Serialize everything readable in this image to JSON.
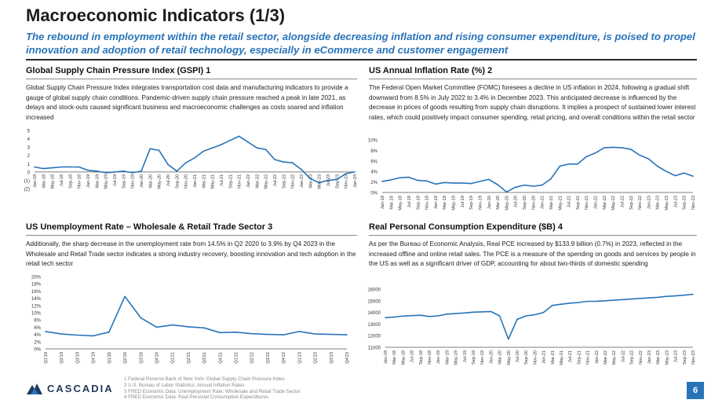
{
  "header": {
    "title": "Macroeconomic Indicators (1/3)",
    "subtitle": "The rebound in employment within the retail sector, alongside decreasing inflation and rising consumer expenditure, is poised to propel innovation and adoption of retail technology, especially in eCommerce and customer engagement"
  },
  "colors": {
    "accent": "#2874b8",
    "dark": "#1f3a5c"
  },
  "sections": {
    "gscpi": {
      "title": "Global Supply Chain Pressure Index (GSPI) 1",
      "description": "Global Supply Chain Pressure Index integrates transportation cost data and manufacturing indicators to provide a gauge of global supply chain conditions. Pandemic-driven supply chain pressure reached a peak in late 2021, as delays and stock-outs caused significant business and macroeconomic challenges as costs soared and inflation increased"
    },
    "inflation": {
      "title": "US Annual Inflation Rate (%) 2",
      "description": "The Federal Open Market Committee (FOMC) foresees a decline in US inflation in 2024, following a gradual shift downward from 8.5% in July 2022 to 3.4% in December 2023. This anticipated decrease is influenced by the decrease in prices of goods resulting from supply chain disruptions. It implies a prospect of sustained lower interest rates, which could positively impact consumer spending, retail pricing, and overall conditions within the retail sector"
    },
    "unemployment": {
      "title": "US Unemployment Rate – Wholesale & Retail Trade Sector 3",
      "description": "Additionally, the sharp decrease in the unemployment rate from 14.5% in Q2 2020 to 3.9% by Q4 2023 in the Wholesale and Retail Trade sector indicates a strong industry recovery, boosting innovation and tech adoption in the retail tech sector"
    },
    "pce": {
      "title": "Real Personal Consumption Expenditure ($B) 4",
      "description": "As per the Bureau of Economic Analysis, Real PCE increased by $133.9 billion (0.7%) in 2023, reflected in the increased offline and online retail sales. The PCE is a measure of the spending on goods and services by people in the US as well as a significant driver of GDP, accounting for about two-thirds of domestic spending"
    }
  },
  "chart_data": [
    {
      "id": "gscpi",
      "type": "line",
      "title": "Global Supply Chain Pressure Index (GSPI)",
      "ylim": [
        -2,
        5
      ],
      "yticks": [
        5,
        4,
        3,
        2,
        1,
        0,
        -1,
        -2
      ],
      "ytick_labels": [
        "5",
        "4",
        "3",
        "2",
        "1",
        "0",
        "(1)",
        "(2)"
      ],
      "categories": [
        "Jan-18",
        "Mar-18",
        "May-18",
        "Jul-18",
        "Sep-18",
        "Nov-18",
        "Jan-19",
        "Mar-19",
        "May-19",
        "Jul-19",
        "Sep-19",
        "Nov-19",
        "Jan-20",
        "Mar-20",
        "May-20",
        "Jul-20",
        "Sep-20",
        "Nov-20",
        "Jan-21",
        "Mar-21",
        "May-21",
        "Jul-21",
        "Sep-21",
        "Nov-21",
        "Jan-22",
        "Mar-22",
        "May-22",
        "Jul-22",
        "Sep-22",
        "Nov-22",
        "Jan-23",
        "Mar-23",
        "May-23",
        "Jul-23",
        "Sep-23",
        "Nov-23",
        "Jan-24"
      ],
      "values": [
        0.6,
        0.4,
        0.5,
        0.6,
        0.6,
        0.6,
        0.2,
        0.1,
        -0.1,
        0.0,
        0.1,
        -0.1,
        0.1,
        2.8,
        2.6,
        0.9,
        0.1,
        1.1,
        1.7,
        2.5,
        2.9,
        3.3,
        3.8,
        4.3,
        3.6,
        2.9,
        2.7,
        1.5,
        1.2,
        1.1,
        0.3,
        -0.8,
        -1.3,
        -1.0,
        -0.9,
        -0.2,
        0.0
      ]
    },
    {
      "id": "inflation",
      "type": "line",
      "title": "US Annual Inflation Rate (%)",
      "ylim": [
        0,
        10
      ],
      "yticks": [
        10,
        8,
        6,
        4,
        2,
        0
      ],
      "ytick_labels": [
        "10%",
        "8%",
        "6%",
        "4%",
        "2%",
        "0%"
      ],
      "categories": [
        "Jan-18",
        "Mar-18",
        "May-18",
        "Jul-18",
        "Sep-18",
        "Nov-18",
        "Jan-19",
        "Mar-19",
        "May-19",
        "Jul-19",
        "Sep-19",
        "Nov-19",
        "Jan-20",
        "Mar-20",
        "May-20",
        "Jul-20",
        "Sep-20",
        "Nov-20",
        "Jan-21",
        "Mar-21",
        "May-21",
        "Jul-21",
        "Sep-21",
        "Nov-21",
        "Jan-22",
        "Mar-22",
        "May-22",
        "Jul-22",
        "Sep-22",
        "Nov-22",
        "Jan-23",
        "Mar-23",
        "May-23",
        "Jul-23",
        "Sep-23",
        "Nov-23"
      ],
      "values": [
        2.1,
        2.4,
        2.8,
        2.9,
        2.3,
        2.2,
        1.6,
        1.9,
        1.8,
        1.8,
        1.7,
        2.1,
        2.5,
        1.5,
        0.1,
        1.0,
        1.4,
        1.2,
        1.4,
        2.6,
        5.0,
        5.4,
        5.4,
        6.8,
        7.5,
        8.5,
        8.6,
        8.5,
        8.2,
        7.1,
        6.4,
        5.0,
        4.0,
        3.2,
        3.7,
        3.1
      ]
    },
    {
      "id": "unemployment",
      "type": "line",
      "title": "US Unemployment Rate – Wholesale & Retail Trade Sector",
      "ylim": [
        0,
        20
      ],
      "yticks": [
        20,
        18,
        16,
        14,
        12,
        10,
        8,
        6,
        4,
        2,
        0
      ],
      "ytick_labels": [
        "20%",
        "18%",
        "16%",
        "14%",
        "12%",
        "10%",
        "8%",
        "6%",
        "4%",
        "2%",
        "0%"
      ],
      "categories": [
        "Q1'19",
        "Q2'19",
        "Q3'19",
        "Q4'19",
        "Q1'20",
        "Q2'20",
        "Q3'20",
        "Q4'20",
        "Q1'21",
        "Q2'21",
        "Q3'21",
        "Q4'21",
        "Q1'22",
        "Q2'22",
        "Q3'22",
        "Q4'22",
        "Q1'23",
        "Q2'23",
        "Q3'23",
        "Q4'23"
      ],
      "values": [
        4.8,
        4.1,
        3.8,
        3.6,
        4.6,
        14.5,
        8.6,
        6.0,
        6.6,
        6.1,
        5.8,
        4.5,
        4.6,
        4.2,
        4.0,
        3.9,
        4.8,
        4.1,
        4.0,
        3.9
      ]
    },
    {
      "id": "pce",
      "type": "line",
      "title": "Real Personal Consumption Expenditure ($B)",
      "ylim": [
        11000,
        16000
      ],
      "yticks": [
        16000,
        15000,
        14000,
        13000,
        12000,
        11000
      ],
      "ytick_labels": [
        "16000",
        "15000",
        "14000",
        "13000",
        "12000",
        "11000"
      ],
      "categories": [
        "Jan-18",
        "Mar-18",
        "May-18",
        "Jul-18",
        "Sep-18",
        "Nov-18",
        "Jan-19",
        "Mar-19",
        "May-19",
        "Jul-19",
        "Sep-19",
        "Nov-19",
        "Jan-20",
        "Mar-20",
        "May-20",
        "Jul-20",
        "Sep-20",
        "Nov-20",
        "Jan-21",
        "Mar-21",
        "May-21",
        "Jul-21",
        "Sep-21",
        "Nov-21",
        "Jan-22",
        "Mar-22",
        "May-22",
        "Jul-22",
        "Sep-22",
        "Nov-22",
        "Jan-23",
        "Mar-23",
        "May-23",
        "Jul-23",
        "Sep-23",
        "Nov-23"
      ],
      "values": [
        13550,
        13600,
        13680,
        13720,
        13760,
        13650,
        13700,
        13850,
        13900,
        13950,
        14020,
        14050,
        14080,
        13700,
        11700,
        13400,
        13700,
        13800,
        14000,
        14600,
        14700,
        14800,
        14850,
        14950,
        14950,
        15000,
        15050,
        15100,
        15150,
        15200,
        15250,
        15300,
        15380,
        15420,
        15480,
        15560
      ]
    }
  ],
  "footnotes": [
    "1 Federal Reserve Bank of New York: Global Supply Chain Pressure Index",
    "2 U.S. Bureau of Labor Statistics: Annual Inflation Rates",
    "3 FRED Economic Data: Unemployment Rate: Wholesale and Retail Trade Sector",
    "4 FRED Economic Data: Real Personal Consumption Expenditures"
  ],
  "footer": {
    "logo_text": "CASCADIA",
    "page_number": "6"
  }
}
